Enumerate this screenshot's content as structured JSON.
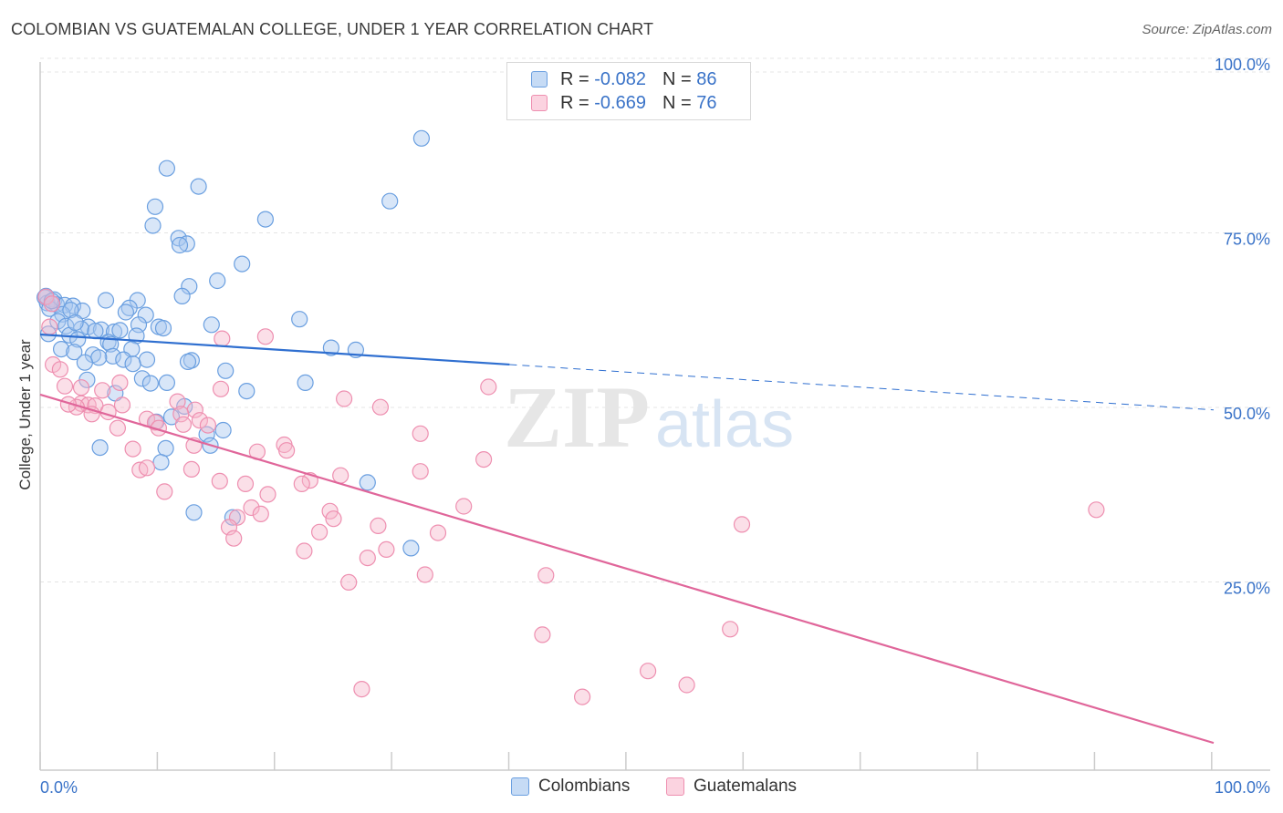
{
  "header": {
    "title": "COLOMBIAN VS GUATEMALAN COLLEGE, UNDER 1 YEAR CORRELATION CHART",
    "source": "Source: ZipAtlas.com"
  },
  "watermark": {
    "zip": "ZIP",
    "atlas": "atlas"
  },
  "legend": {
    "r_label": "R =",
    "n_label": "N =",
    "rows": [
      {
        "r": "-0.082",
        "n": "86",
        "fill": "#a9c8f0",
        "stroke": "#6a9fe0"
      },
      {
        "r": "-0.669",
        "n": "76",
        "fill": "#f7b9cd",
        "stroke": "#ee8fb0"
      }
    ]
  },
  "bottom_legend": [
    {
      "label": "Colombians",
      "fill": "#a9c8f0",
      "stroke": "#6a9fe0"
    },
    {
      "label": "Guatemalans",
      "fill": "#f7b9cd",
      "stroke": "#ee8fb0"
    }
  ],
  "chart_data": {
    "type": "scatter",
    "title": "COLOMBIAN VS GUATEMALAN COLLEGE, UNDER 1 YEAR CORRELATION CHART",
    "xlabel": "",
    "ylabel": "College, Under 1 year",
    "xlim": [
      0,
      100
    ],
    "ylim": [
      0,
      100
    ],
    "x_tick_labels": [
      "0.0%",
      "100.0%"
    ],
    "y_tick_labels": [
      "25.0%",
      "50.0%",
      "75.0%",
      "100.0%"
    ],
    "y_ticks": [
      25,
      50,
      75,
      100
    ],
    "grid": true,
    "legend_position": "top-center",
    "series": [
      {
        "name": "Colombians",
        "color": "#6a9fe0",
        "fill": "#a9c8f0",
        "line_color": "#2f6fd0",
        "trend": {
          "x": [
            0,
            40,
            100
          ],
          "y": [
            62.4,
            58.1,
            51.6
          ],
          "solid_until": 40
        },
        "points": [
          [
            32.5,
            90.5
          ],
          [
            10.8,
            86.2
          ],
          [
            13.5,
            83.6
          ],
          [
            29.8,
            81.5
          ],
          [
            9.8,
            80.7
          ],
          [
            19.2,
            78.9
          ],
          [
            9.6,
            78.0
          ],
          [
            11.8,
            76.2
          ],
          [
            12.5,
            75.4
          ],
          [
            11.9,
            75.2
          ],
          [
            17.2,
            72.5
          ],
          [
            15.1,
            70.1
          ],
          [
            12.7,
            69.3
          ],
          [
            12.1,
            67.9
          ],
          [
            0.4,
            67.7
          ],
          [
            1.2,
            67.4
          ],
          [
            5.6,
            67.3
          ],
          [
            8.3,
            67.3
          ],
          [
            0.6,
            66.9
          ],
          [
            1.4,
            66.7
          ],
          [
            2.1,
            66.6
          ],
          [
            2.8,
            66.5
          ],
          [
            7.6,
            66.2
          ],
          [
            0.8,
            66.1
          ],
          [
            3.6,
            65.8
          ],
          [
            7.3,
            65.6
          ],
          [
            1.9,
            65.3
          ],
          [
            9.0,
            65.2
          ],
          [
            22.1,
            64.6
          ],
          [
            1.5,
            64.3
          ],
          [
            8.4,
            63.8
          ],
          [
            14.6,
            63.8
          ],
          [
            2.2,
            63.6
          ],
          [
            4.1,
            63.5
          ],
          [
            10.1,
            63.5
          ],
          [
            10.5,
            63.3
          ],
          [
            3.5,
            63.2
          ],
          [
            5.2,
            63.1
          ],
          [
            4.7,
            62.9
          ],
          [
            6.3,
            62.8
          ],
          [
            0.7,
            62.5
          ],
          [
            2.5,
            62.3
          ],
          [
            8.2,
            62.2
          ],
          [
            3.2,
            61.7
          ],
          [
            5.8,
            61.3
          ],
          [
            6.0,
            61.0
          ],
          [
            1.8,
            60.3
          ],
          [
            7.8,
            60.3
          ],
          [
            24.8,
            60.5
          ],
          [
            26.9,
            60.2
          ],
          [
            2.9,
            59.9
          ],
          [
            4.5,
            59.5
          ],
          [
            6.2,
            59.3
          ],
          [
            5.0,
            59.1
          ],
          [
            12.9,
            58.7
          ],
          [
            7.1,
            58.8
          ],
          [
            9.1,
            58.8
          ],
          [
            12.6,
            58.5
          ],
          [
            3.8,
            58.4
          ],
          [
            7.9,
            58.2
          ],
          [
            15.8,
            57.2
          ],
          [
            8.7,
            56.1
          ],
          [
            4.0,
            55.9
          ],
          [
            10.8,
            55.5
          ],
          [
            9.4,
            55.4
          ],
          [
            22.6,
            55.5
          ],
          [
            17.6,
            54.3
          ],
          [
            6.4,
            54.0
          ],
          [
            12.3,
            52.1
          ],
          [
            11.2,
            50.6
          ],
          [
            9.9,
            49.9
          ],
          [
            15.6,
            48.7
          ],
          [
            14.2,
            48.1
          ],
          [
            14.5,
            46.5
          ],
          [
            5.1,
            46.2
          ],
          [
            10.7,
            46.1
          ],
          [
            10.3,
            44.1
          ],
          [
            27.9,
            41.2
          ],
          [
            13.1,
            36.9
          ],
          [
            16.4,
            36.2
          ],
          [
            31.6,
            31.8
          ],
          [
            0.5,
            67.9
          ],
          [
            1.0,
            67.2
          ],
          [
            2.6,
            65.9
          ],
          [
            3.0,
            64.1
          ],
          [
            6.8,
            63.0
          ]
        ]
      },
      {
        "name": "Guatemalans",
        "color": "#ee8fb0",
        "fill": "#f7b9cd",
        "line_color": "#e0669a",
        "trend": {
          "x": [
            0,
            100
          ],
          "y": [
            53.8,
            3.9
          ]
        },
        "points": [
          [
            0.5,
            67.8
          ],
          [
            1.0,
            66.8
          ],
          [
            0.8,
            63.5
          ],
          [
            19.2,
            62.1
          ],
          [
            15.5,
            61.8
          ],
          [
            1.1,
            58.1
          ],
          [
            1.7,
            57.4
          ],
          [
            6.8,
            55.5
          ],
          [
            2.1,
            55.0
          ],
          [
            3.5,
            54.8
          ],
          [
            5.3,
            54.4
          ],
          [
            15.4,
            54.6
          ],
          [
            38.2,
            54.9
          ],
          [
            25.9,
            53.2
          ],
          [
            11.7,
            52.8
          ],
          [
            3.5,
            52.5
          ],
          [
            4.1,
            52.3
          ],
          [
            4.7,
            52.2
          ],
          [
            7.0,
            52.3
          ],
          [
            3.1,
            52.0
          ],
          [
            13.2,
            51.6
          ],
          [
            29.0,
            52.0
          ],
          [
            5.8,
            51.3
          ],
          [
            12.0,
            51.0
          ],
          [
            9.1,
            50.3
          ],
          [
            9.8,
            49.8
          ],
          [
            13.6,
            50.1
          ],
          [
            12.2,
            49.5
          ],
          [
            14.3,
            49.4
          ],
          [
            6.6,
            49.0
          ],
          [
            32.4,
            48.2
          ],
          [
            20.8,
            46.6
          ],
          [
            21.0,
            45.8
          ],
          [
            18.5,
            45.6
          ],
          [
            7.9,
            46.0
          ],
          [
            13.1,
            46.5
          ],
          [
            37.8,
            44.5
          ],
          [
            8.5,
            43.0
          ],
          [
            9.1,
            43.3
          ],
          [
            12.9,
            43.1
          ],
          [
            32.4,
            42.8
          ],
          [
            25.6,
            42.2
          ],
          [
            23.0,
            41.5
          ],
          [
            15.3,
            41.4
          ],
          [
            17.5,
            41.0
          ],
          [
            22.3,
            41.0
          ],
          [
            10.6,
            39.9
          ],
          [
            19.4,
            39.5
          ],
          [
            36.1,
            37.8
          ],
          [
            18.0,
            37.6
          ],
          [
            24.7,
            37.1
          ],
          [
            18.8,
            36.7
          ],
          [
            16.8,
            36.2
          ],
          [
            25.0,
            36.0
          ],
          [
            16.1,
            34.8
          ],
          [
            33.9,
            34.0
          ],
          [
            28.8,
            35.0
          ],
          [
            59.8,
            35.2
          ],
          [
            90.0,
            37.3
          ],
          [
            23.8,
            34.1
          ],
          [
            16.5,
            33.2
          ],
          [
            22.5,
            31.4
          ],
          [
            27.9,
            30.4
          ],
          [
            29.5,
            31.6
          ],
          [
            32.8,
            28.0
          ],
          [
            43.1,
            27.9
          ],
          [
            26.3,
            26.9
          ],
          [
            58.8,
            20.2
          ],
          [
            42.8,
            19.4
          ],
          [
            51.8,
            14.2
          ],
          [
            55.1,
            12.2
          ],
          [
            27.4,
            11.6
          ],
          [
            46.2,
            10.5
          ],
          [
            2.4,
            52.4
          ],
          [
            4.4,
            51.0
          ],
          [
            10.1,
            49.0
          ]
        ]
      }
    ]
  }
}
